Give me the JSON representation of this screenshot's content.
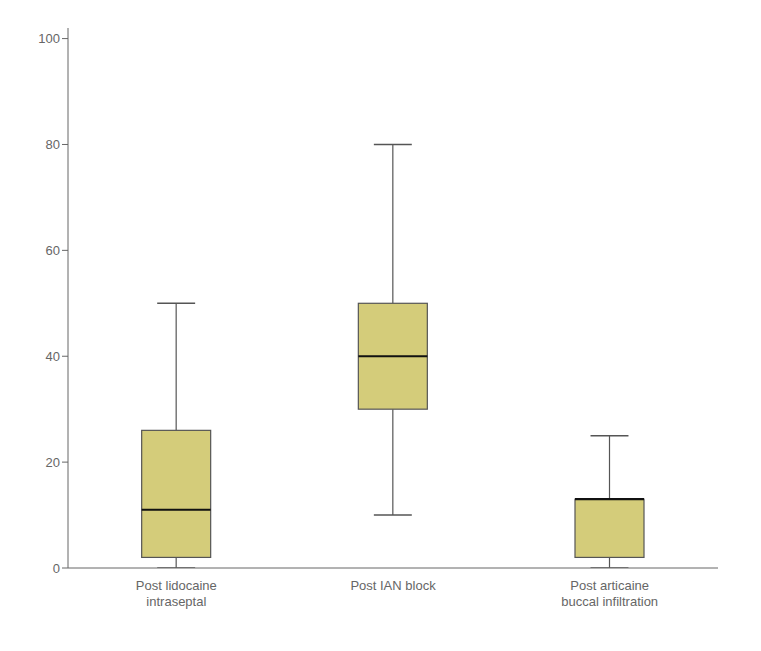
{
  "chart_data": {
    "type": "box",
    "categories": [
      "Post lidocaine\nintraseptal",
      "Post IAN block",
      "Post articaine\nbuccal infiltration"
    ],
    "whisker_low": [
      0,
      10,
      0
    ],
    "q1": [
      2,
      30,
      2
    ],
    "median": [
      11,
      40,
      13
    ],
    "q3": [
      26,
      50,
      13
    ],
    "whisker_high": [
      50,
      80,
      25
    ],
    "color": "#d4cc7a",
    "ylim": [
      0,
      102
    ],
    "yticks": [
      0,
      20,
      40,
      60,
      80,
      100
    ],
    "grid": false
  }
}
